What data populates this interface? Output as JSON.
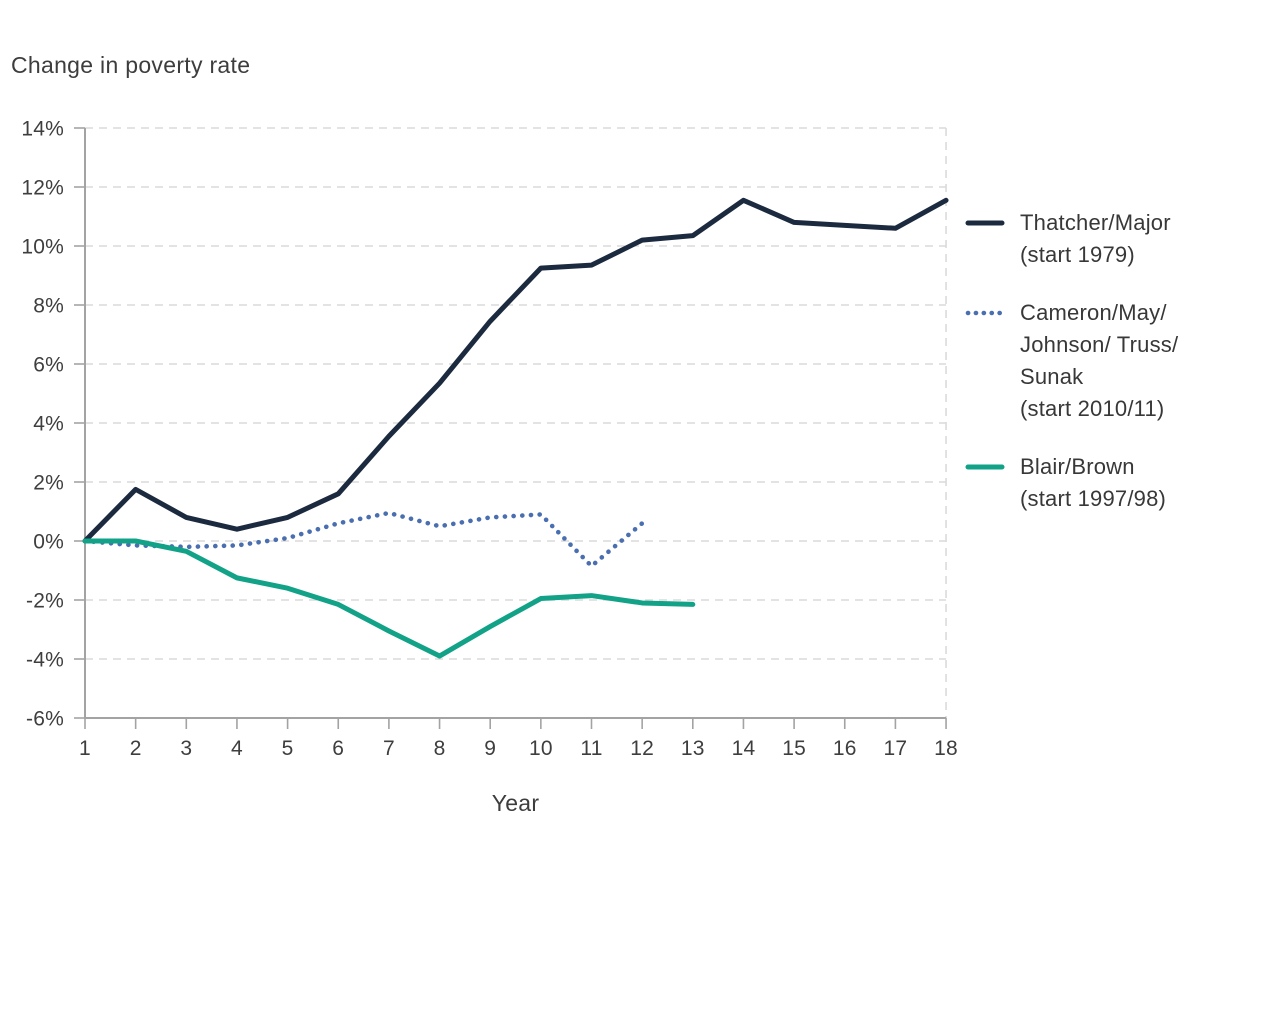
{
  "title": "Change in poverty rate",
  "chart_data": {
    "type": "line",
    "xlabel": "Year",
    "ylabel": "Change in poverty rate",
    "ylim": [
      -6,
      14
    ],
    "xlim": [
      1,
      18
    ],
    "grid": "horizontal-dashed, right-edge vertical dashed",
    "legend_position": "right",
    "yticks": [
      "14%",
      "12%",
      "10%",
      "8%",
      "6%",
      "4%",
      "2%",
      "0%",
      "-2%",
      "-4%",
      "-6%"
    ],
    "xticks": [
      "1",
      "2",
      "3",
      "4",
      "5",
      "6",
      "7",
      "8",
      "9",
      "10",
      "11",
      "12",
      "13",
      "14",
      "15",
      "16",
      "17",
      "18"
    ],
    "colors": {
      "grid": "#dadada",
      "axis": "#a3a3a3",
      "text": "#3e3e3e"
    },
    "series": [
      {
        "key": "thatcher-major",
        "name": "Thatcher/Major (start 1979)",
        "legend_label": "Thatcher/Major\n(start 1979)",
        "style": "solid",
        "color": "#1c2a40",
        "start_year": 1,
        "values": [
          0,
          1.75,
          0.8,
          0.4,
          0.8,
          1.6,
          3.55,
          5.35,
          7.45,
          9.25,
          9.35,
          10.2,
          10.35,
          11.55,
          10.8,
          10.7,
          10.6,
          11.55
        ]
      },
      {
        "key": "cameron-may-johnson-truss-sunak",
        "name": "Cameron/May/Johnson/Truss/Sunak (start 2010/11)",
        "legend_label": "Cameron/May/\nJohnson/ Truss/\nSunak\n(start 2010/11)",
        "style": "dotted",
        "color": "#4a6fb0",
        "start_year": 1,
        "values": [
          0,
          -0.15,
          -0.2,
          -0.15,
          0.1,
          0.6,
          0.95,
          0.5,
          0.8,
          0.9,
          -0.85,
          0.6
        ]
      },
      {
        "key": "blair-brown",
        "name": "Blair/Brown (start 1997/98)",
        "legend_label": "Blair/Brown\n(start 1997/98)",
        "style": "solid",
        "color": "#12a287",
        "start_year": 1,
        "values": [
          0,
          0,
          -0.35,
          -1.25,
          -1.6,
          -2.15,
          -3.05,
          -3.9,
          -2.9,
          -1.95,
          -1.85,
          -2.1,
          -2.15
        ]
      }
    ]
  }
}
